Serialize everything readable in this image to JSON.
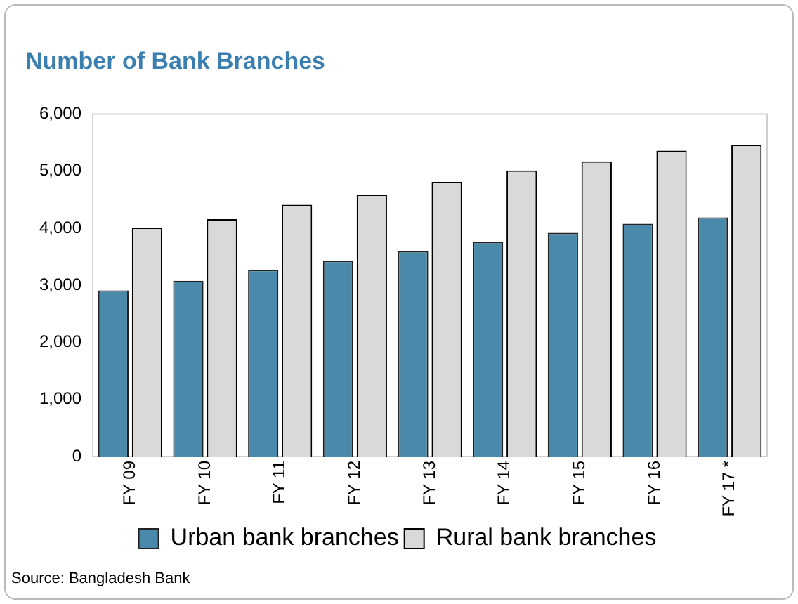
{
  "chart_data": {
    "type": "bar",
    "title": "Number of Bank Branches",
    "categories": [
      "FY 09",
      "FY 10",
      "FY 11",
      "FY 12",
      "FY 13",
      "FY 14",
      "FY 15",
      "FY 16",
      "FY 17 *"
    ],
    "series": [
      {
        "name": "Urban bank branches",
        "color": "#4a89aa",
        "values": [
          2910,
          3080,
          3270,
          3430,
          3600,
          3760,
          3920,
          4080,
          4190
        ]
      },
      {
        "name": "Rural bank branches",
        "color": "#d9d9d9",
        "values": [
          4010,
          4160,
          4410,
          4590,
          4810,
          5010,
          5170,
          5360,
          5460
        ]
      }
    ],
    "ylim": [
      0,
      6000
    ],
    "yticks": [
      0,
      {
        "value": 1000,
        "label": "1,000"
      },
      {
        "value": 2000,
        "label": "2,000"
      },
      {
        "value": 3000,
        "label": "3,000"
      },
      {
        "value": 4000,
        "label": "4,000"
      },
      {
        "value": 5000,
        "label": "5,000"
      },
      {
        "value": 6000,
        "label": "6,000"
      }
    ],
    "grid": false,
    "legend": "bottom",
    "annotations": [
      "Source: Bangladesh Bank"
    ]
  }
}
